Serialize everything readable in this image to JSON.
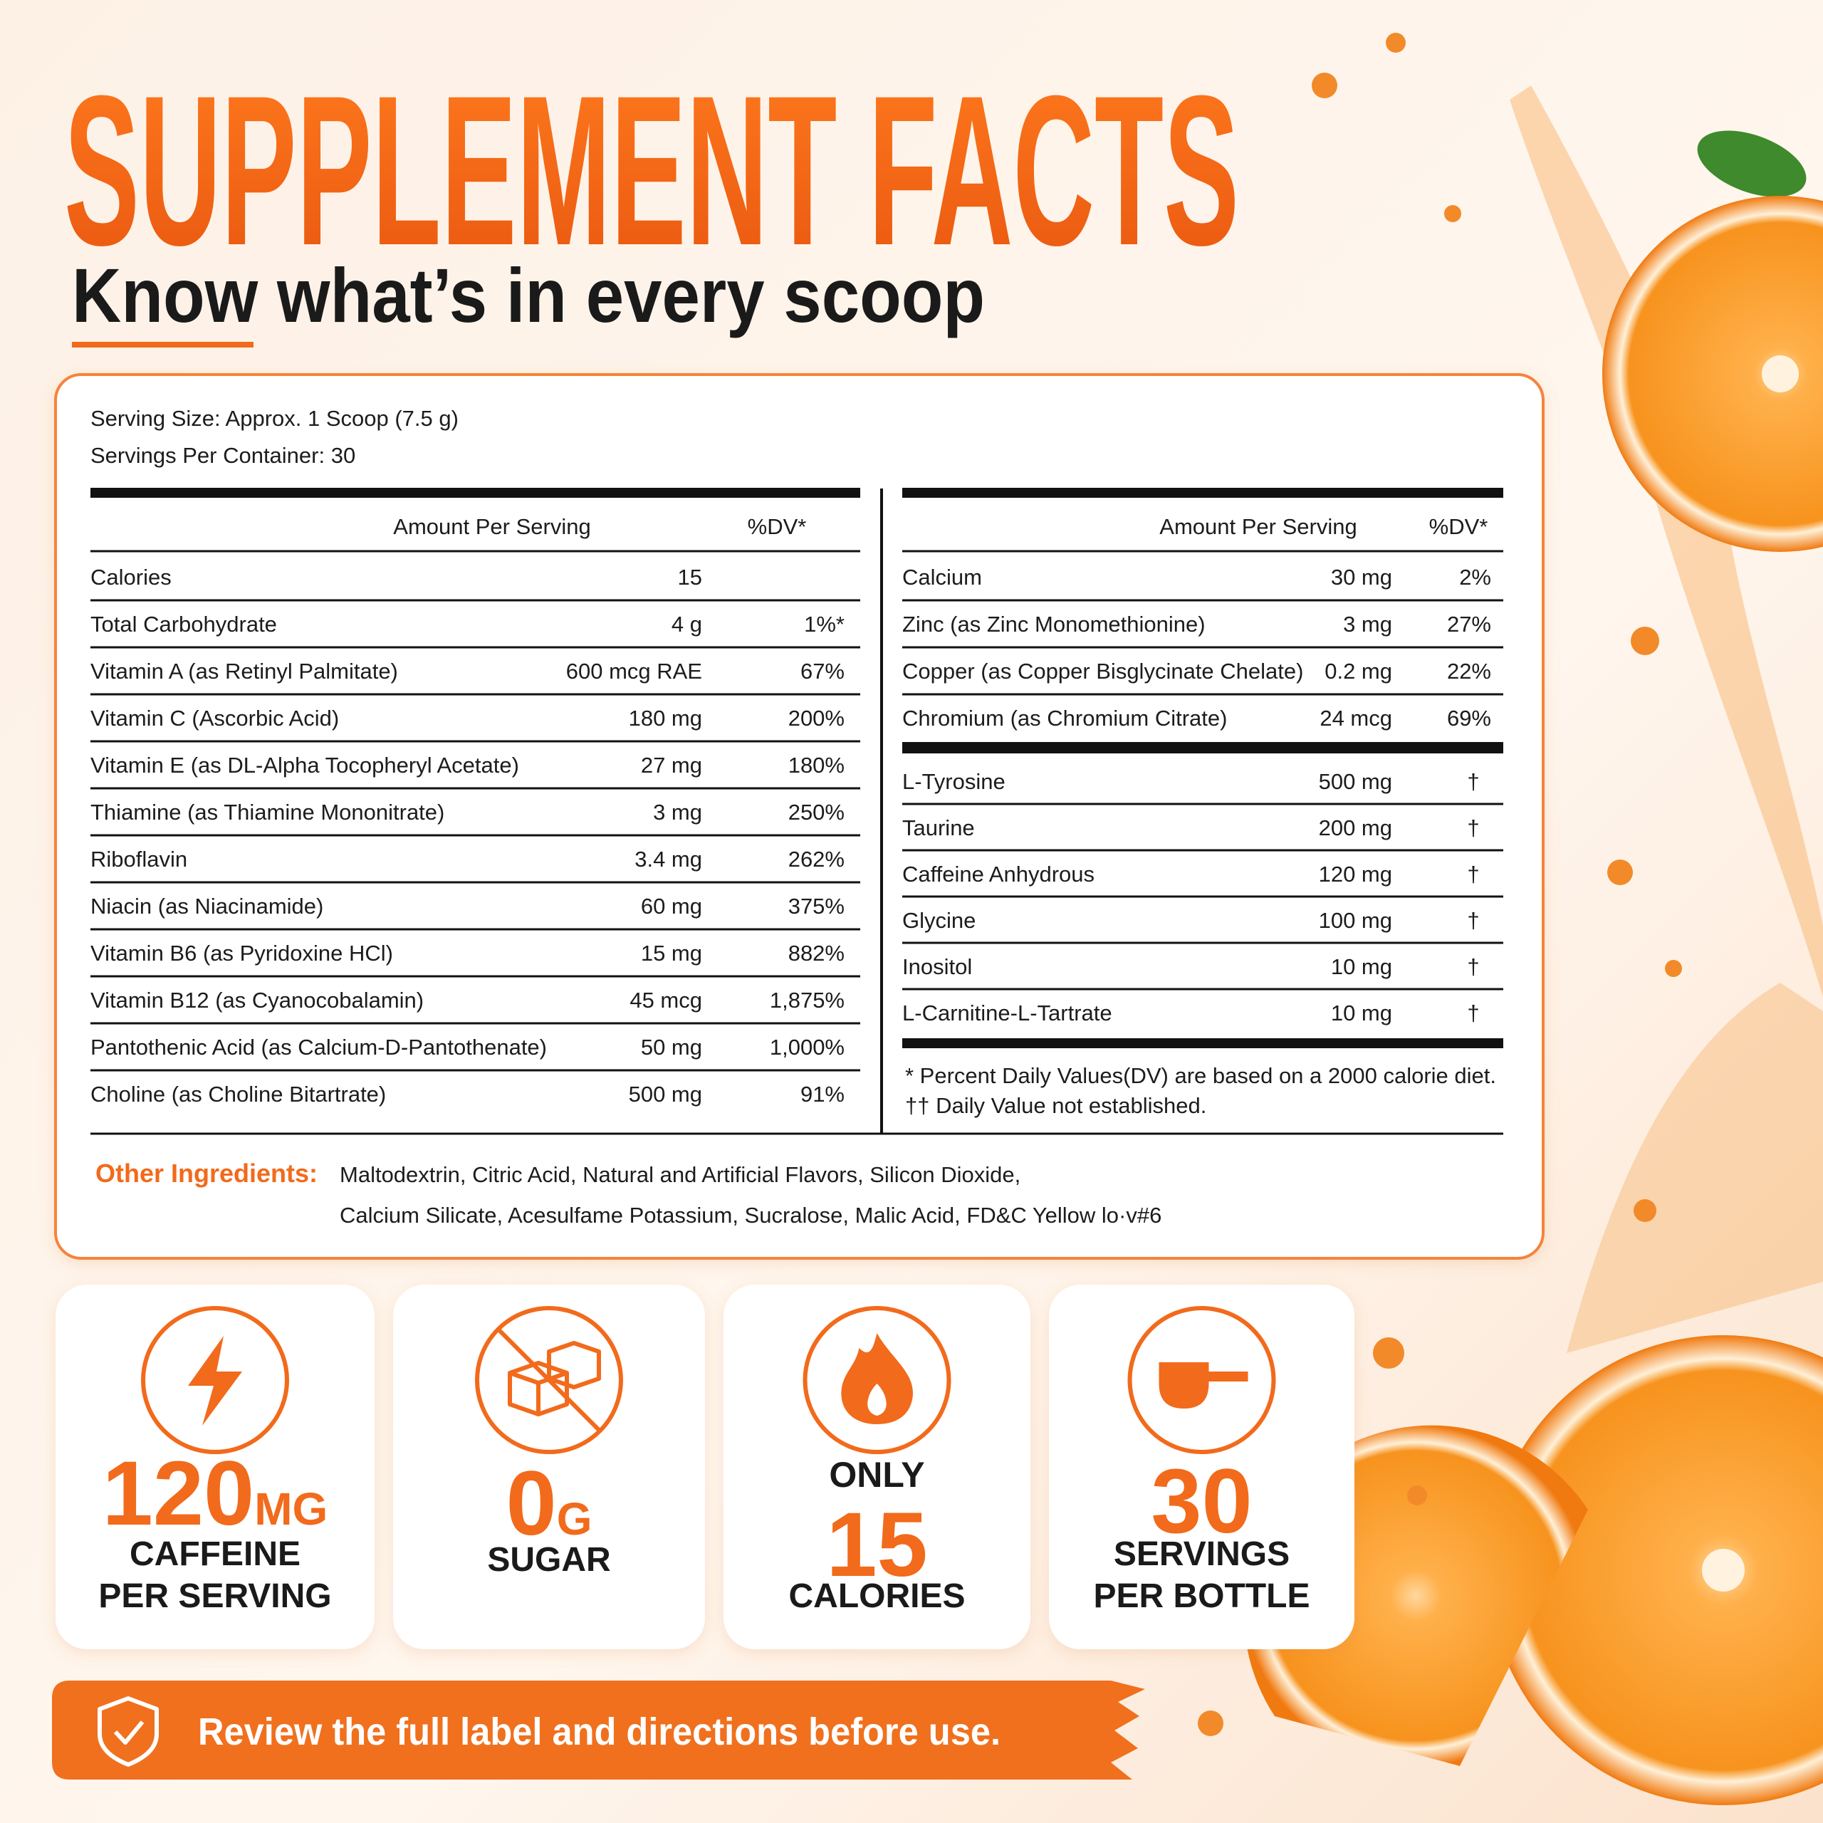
{
  "header": {
    "title": "SUPPLEMENT FACTS",
    "subtitle": "Know what’s in every scoop"
  },
  "serving": {
    "size": "Serving Size: Approx. 1 Scoop (7.5 g)",
    "per_container": "Servings Per Container: 30"
  },
  "left_table": {
    "headers": [
      "Amount Per Serving",
      "%DV*"
    ],
    "rows": [
      [
        "Calories",
        "15"
      ],
      [
        "Total Carbohydrate",
        "4 g",
        "1%*"
      ],
      [
        "Vitamin A (as Retinyl Palmitate)",
        "600 mcg RAE",
        "67%"
      ],
      [
        "Vitamin C (Ascorbic Acid)",
        "180 mg",
        "200%"
      ],
      [
        "Vitamin E (as DL-Alpha Tocopheryl Acetate)",
        "27 mg",
        "180%"
      ],
      [
        "Thiamine (as Thiamine Mononitrate)",
        "3 mg",
        "250%"
      ],
      [
        "Riboflavin",
        "3.4 mg",
        "262%"
      ],
      [
        "Niacin (as Niacinamide)",
        "60 mg",
        "375%"
      ],
      [
        "Vitamin B6 (as Pyridoxine HCl)",
        "15 mg",
        "882%"
      ],
      [
        "Vitamin B12 (as Cyanocobalamin)",
        "45 mcg",
        "1,875%"
      ],
      [
        "Pantothenic Acid (as Calcium-D-Pantothenate)",
        "50 mg",
        "1,000%"
      ],
      [
        "Choline (as Choline Bitartrate)",
        "500 mg",
        "91%"
      ]
    ]
  },
  "right_table": {
    "headers": [
      "Amount Per Serving",
      "%DV*"
    ],
    "minerals": [
      [
        "Calcium",
        "30 mg",
        "2%"
      ],
      [
        "Zinc (as Zinc Monomethionine)",
        "3 mg",
        "27%"
      ],
      [
        "Copper (as Copper Bisglycinate Chelate)",
        "0.2 mg",
        "22%"
      ],
      [
        "Chromium (as Chromium Citrate)",
        "24 mcg",
        "69%"
      ]
    ],
    "others": [
      [
        "L-Tyrosine",
        "500 mg",
        "†"
      ],
      [
        "Taurine",
        "200 mg",
        "†"
      ],
      [
        "Caffeine Anhydrous",
        "120 mg",
        "†"
      ],
      [
        "Glycine",
        "100 mg",
        "†"
      ],
      [
        "Inositol",
        "10 mg",
        "†"
      ],
      [
        "L-Carnitine-L-Tartrate",
        "10 mg",
        "†"
      ]
    ]
  },
  "footnotes": [
    "* Percent Daily Values(DV) are based on a 2000 calorie diet.",
    "†† Daily Value not established."
  ],
  "other_ingredients": {
    "label": "Other Ingredients:",
    "lines": [
      "Maltodextrin, Citric Acid, Natural and Artificial Flavors, Silicon Dioxide,",
      "Calcium Silicate, Acesulfame Potassium, Sucralose, Malic Acid, FD&C Yellow lo·v#6"
    ]
  },
  "badges": [
    {
      "value": "120",
      "unit": "MG",
      "lines": [
        "CAFFEINE",
        "PER SERVING"
      ]
    },
    {
      "value": "0",
      "unit": "G",
      "lines": [
        "SUGAR"
      ]
    },
    {
      "prefix": "ONLY",
      "value": "15",
      "lines": [
        "CALORIES"
      ]
    },
    {
      "value": "30",
      "lines": [
        "SERVINGS",
        "PER BOTTLE"
      ]
    }
  ],
  "banner": {
    "text": "Review the full label and directions before use."
  }
}
